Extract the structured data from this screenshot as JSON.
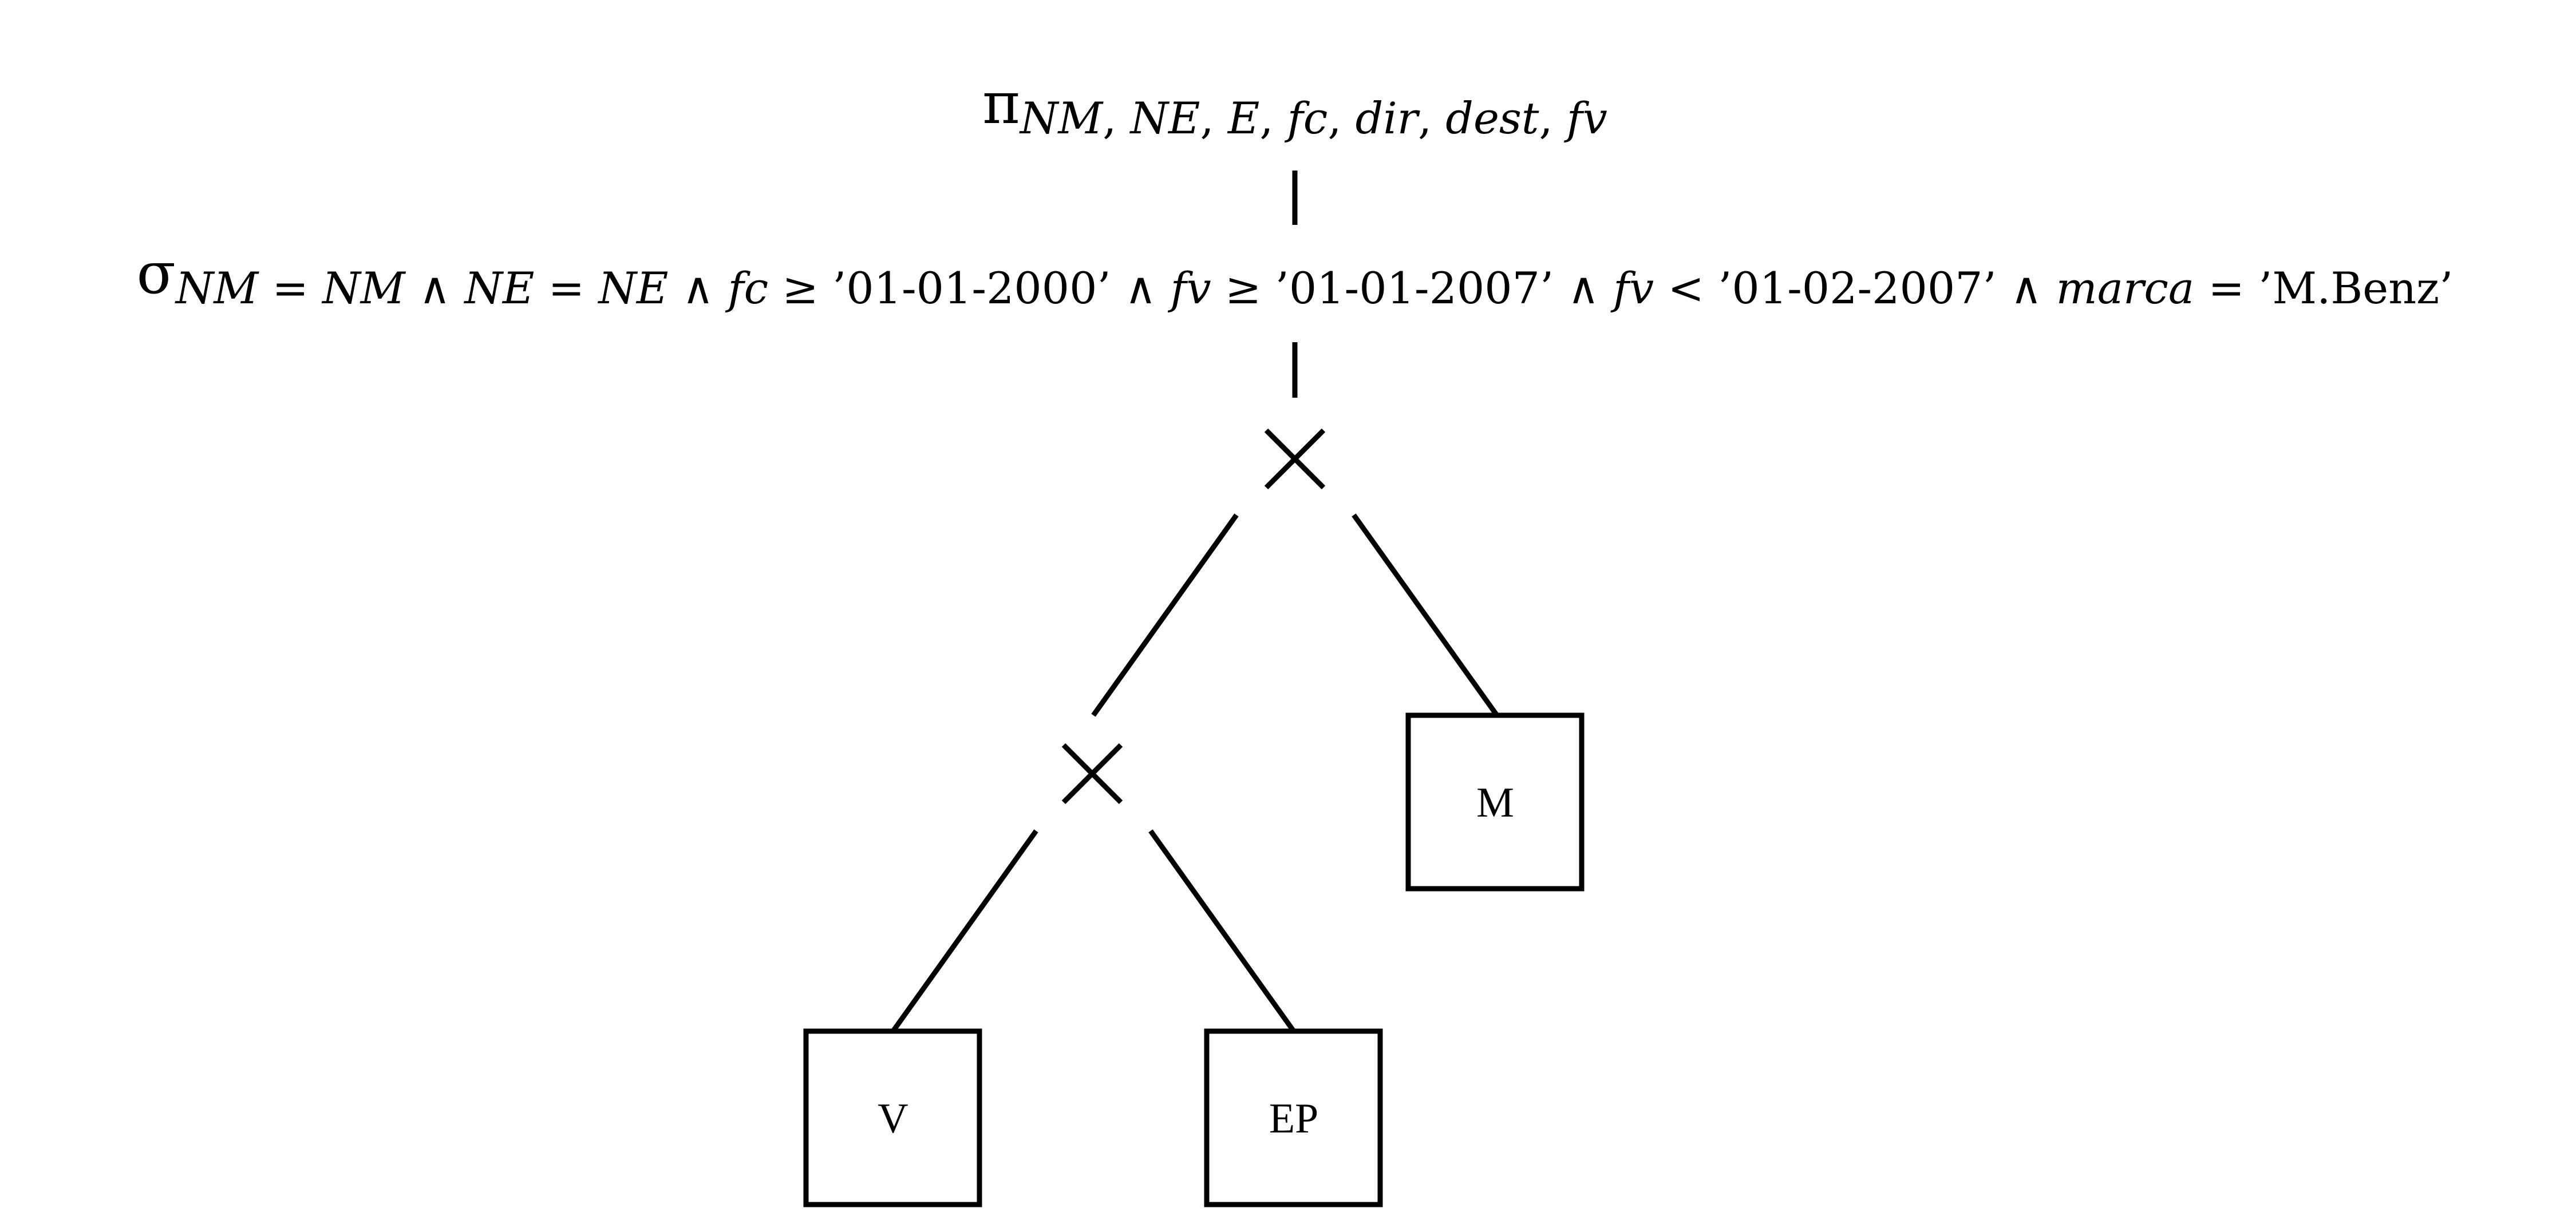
{
  "projection": {
    "symbol": "π",
    "attributes": [
      {
        "text": "NM",
        "italic": true
      },
      {
        "text": ", ",
        "italic": false
      },
      {
        "text": "NE",
        "italic": true
      },
      {
        "text": ", ",
        "italic": false
      },
      {
        "text": "E",
        "italic": true
      },
      {
        "text": ", ",
        "italic": false
      },
      {
        "text": "fc",
        "italic": true
      },
      {
        "text": ", ",
        "italic": false
      },
      {
        "text": "dir",
        "italic": true
      },
      {
        "text": ", ",
        "italic": false
      },
      {
        "text": "dest",
        "italic": true
      },
      {
        "text": ", ",
        "italic": false
      },
      {
        "text": "fv",
        "italic": true
      }
    ]
  },
  "selection": {
    "symbol": "σ",
    "condition": [
      {
        "text": "NM",
        "italic": true
      },
      {
        "text": " = ",
        "italic": false
      },
      {
        "text": "NM",
        "italic": true
      },
      {
        "text": " ∧ ",
        "italic": false
      },
      {
        "text": "NE",
        "italic": true
      },
      {
        "text": " = ",
        "italic": false
      },
      {
        "text": "NE",
        "italic": true
      },
      {
        "text": " ∧ ",
        "italic": false
      },
      {
        "text": "fc",
        "italic": true
      },
      {
        "text": " ≥ ’01-01-2000’ ∧ ",
        "italic": false
      },
      {
        "text": "fv",
        "italic": true
      },
      {
        "text": " ≥ ’01-01-2007’ ∧ ",
        "italic": false
      },
      {
        "text": "fv",
        "italic": true
      },
      {
        "text": " < ’01-02-2007’ ∧ ",
        "italic": false
      },
      {
        "text": "marca",
        "italic": true
      },
      {
        "text": " = ’M.Benz’",
        "italic": false
      }
    ]
  },
  "operators": {
    "product_symbol": "×"
  },
  "relations": {
    "m": "M",
    "v": "V",
    "ep": "EP"
  }
}
